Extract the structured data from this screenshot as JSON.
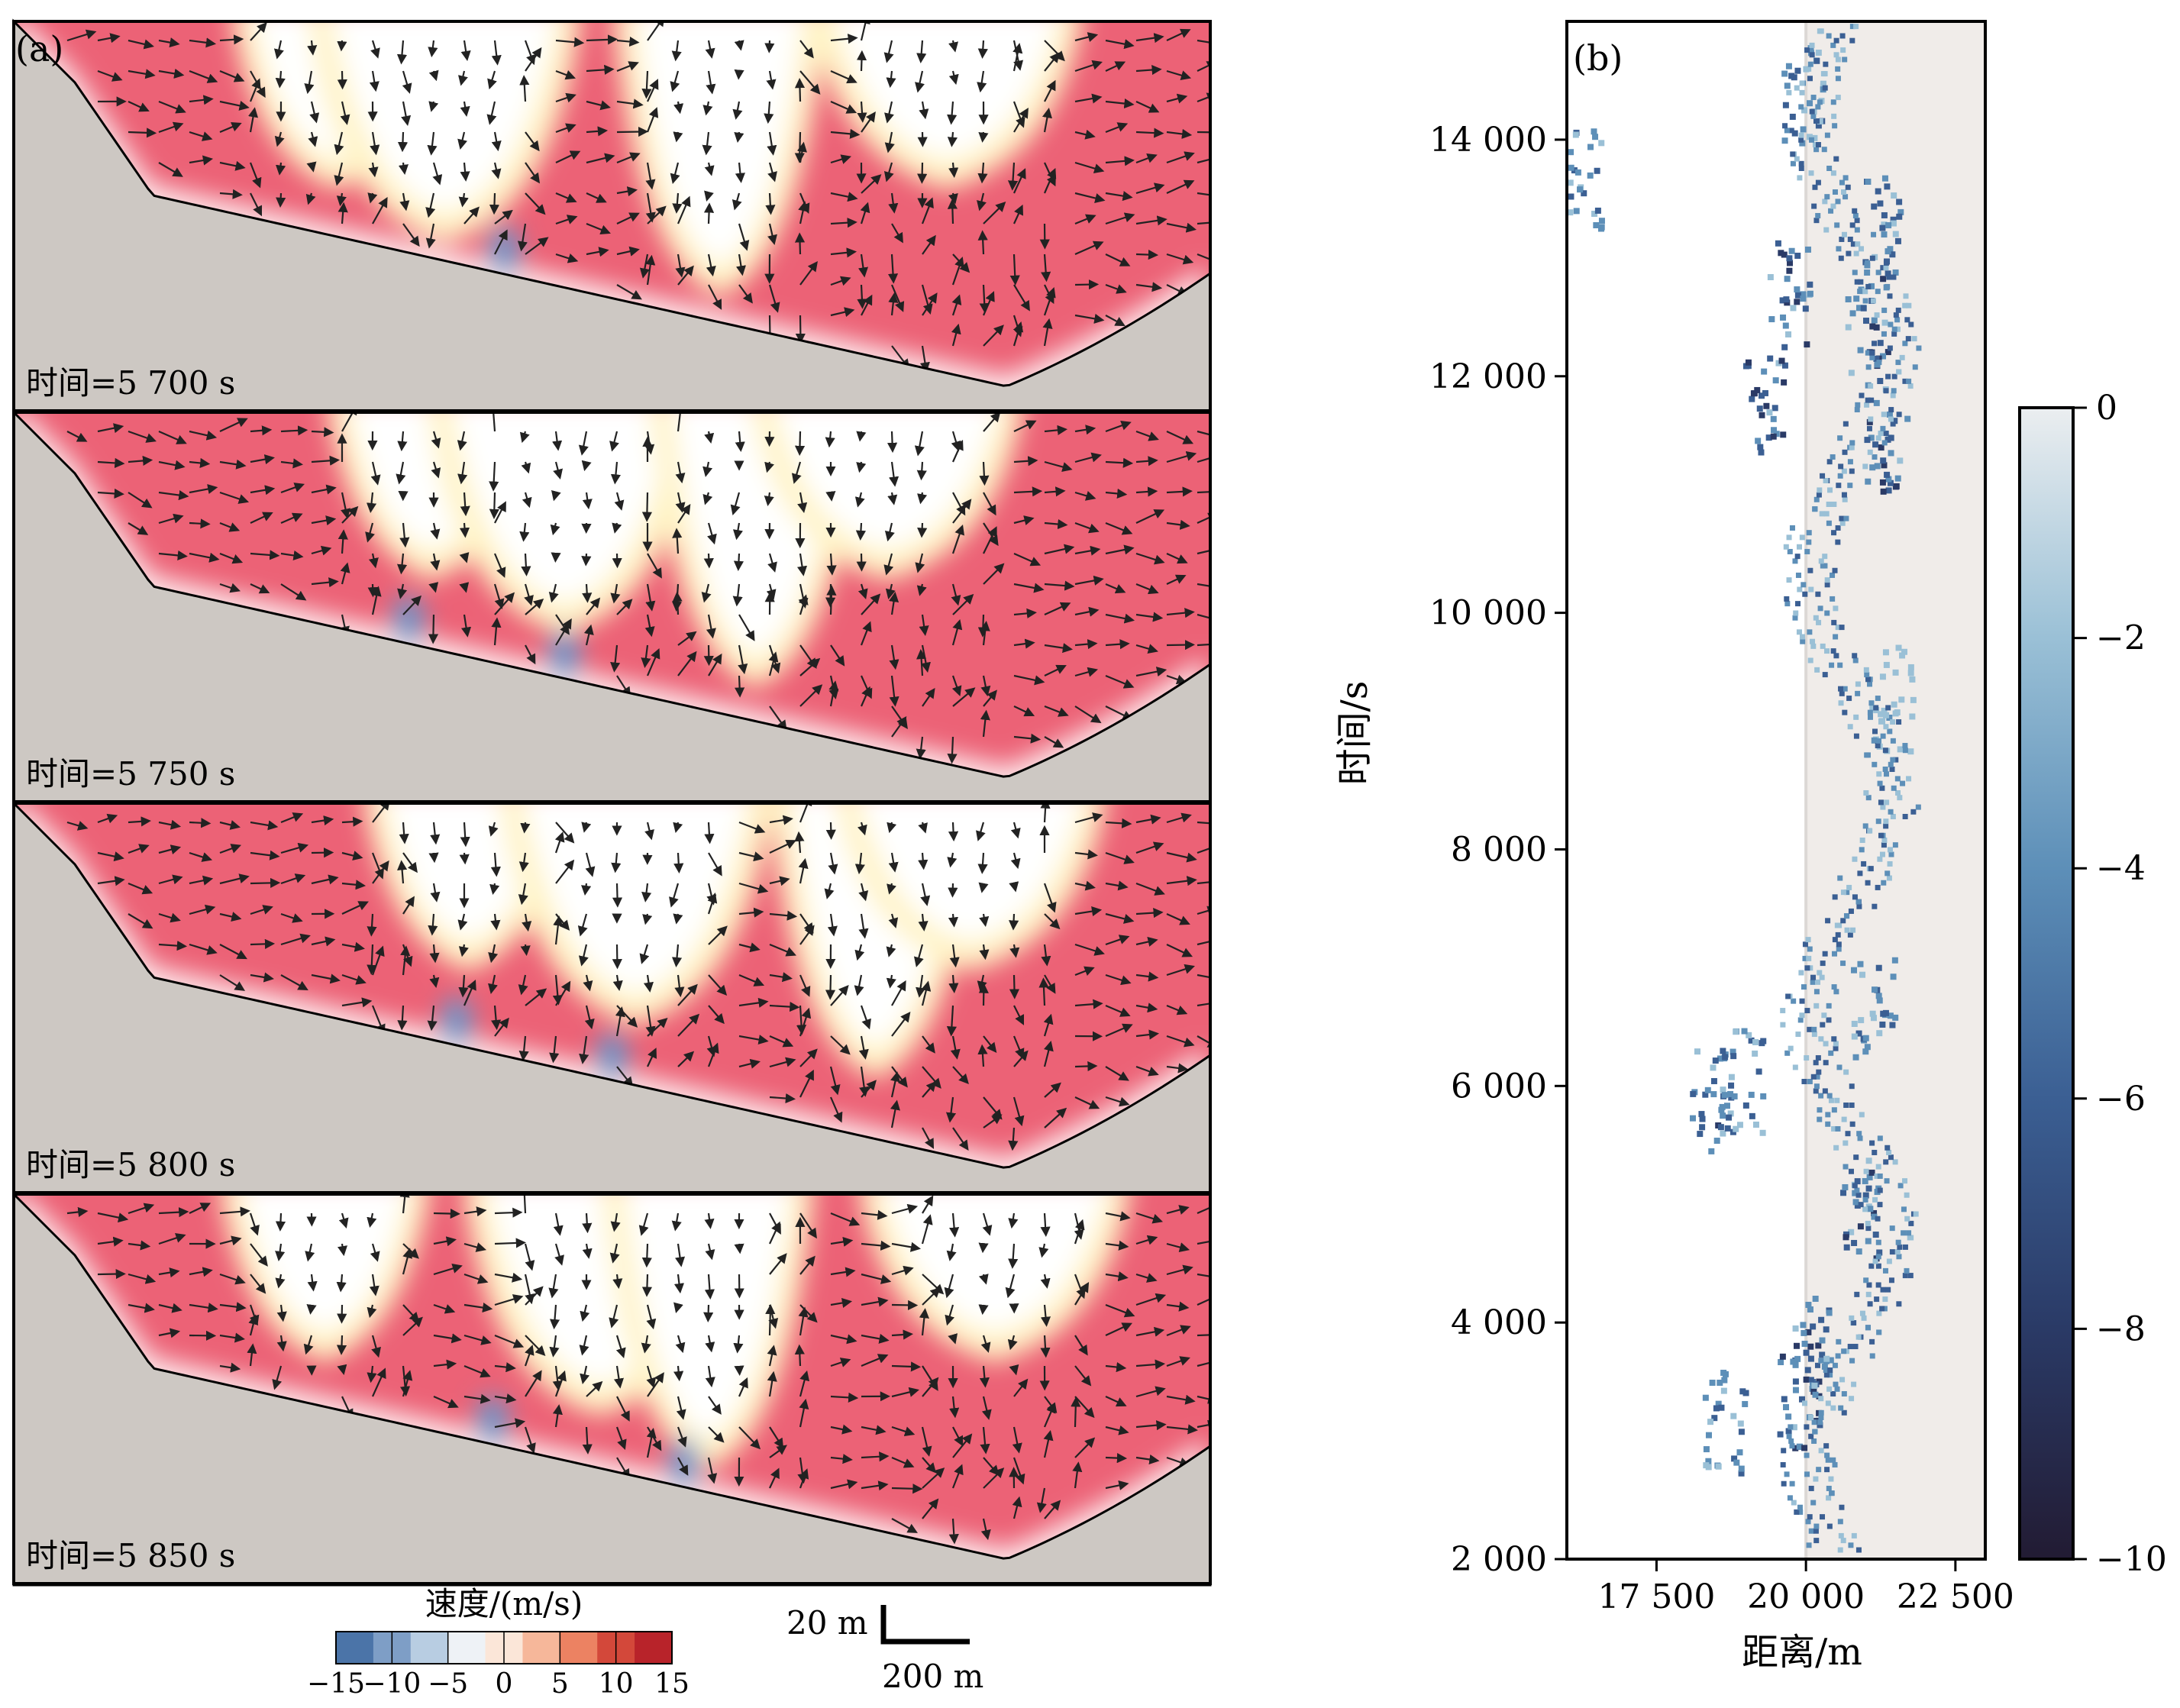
{
  "chart_data": [
    {
      "type": "heatmap",
      "panel": "(a)",
      "panel_label": "(a)",
      "colorbar": {
        "title": "速度/(m/s)",
        "range": [
          -15,
          15
        ],
        "ticks": [
          "−15",
          "−10",
          "−5",
          "0",
          "5",
          "10",
          "15"
        ],
        "colors": [
          "#4b74a8",
          "#7e9ec6",
          "#b8cde2",
          "#eef2f6",
          "#fbe6d8",
          "#f6b79a",
          "#ec8262",
          "#d3483a",
          "#b8232a"
        ]
      },
      "scalebar": {
        "vertical": "20 m",
        "horizontal": "200 m"
      },
      "colors": {
        "flow": "#ec6276",
        "terrain": "#cdc8c3",
        "calm": "#ffffff",
        "transition": "#fff3c4"
      },
      "panels": [
        {
          "label": "时间=5 700 s",
          "time_s": 5700,
          "calm_zones_x": [
            0.27,
            0.36,
            0.59,
            0.78
          ],
          "reverse_zones_x": [
            0.41
          ]
        },
        {
          "label": "时间=5 750 s",
          "time_s": 5750,
          "calm_zones_x": [
            0.35,
            0.46,
            0.62,
            0.73
          ],
          "reverse_zones_x": [
            0.33,
            0.46
          ]
        },
        {
          "label": "时间=5 800 s",
          "time_s": 5800,
          "calm_zones_x": [
            0.38,
            0.52,
            0.72,
            0.8
          ],
          "reverse_zones_x": [
            0.37,
            0.5
          ]
        },
        {
          "label": "时间=5 850 s",
          "time_s": 5850,
          "calm_zones_x": [
            0.26,
            0.49,
            0.58,
            0.82
          ],
          "reverse_zones_x": [
            0.4,
            0.56
          ]
        }
      ]
    },
    {
      "type": "heatmap",
      "panel": "(b)",
      "panel_label": "(b)",
      "xlabel": "距离/m",
      "ylabel": "时间/s",
      "xlim": [
        16000,
        23000
      ],
      "ylim": [
        2000,
        15000
      ],
      "xticks": [
        17500,
        20000,
        22500
      ],
      "xtick_labels": [
        "17 500",
        "20 000",
        "22 500"
      ],
      "yticks": [
        2000,
        4000,
        6000,
        8000,
        10000,
        12000,
        14000
      ],
      "ytick_labels": [
        "2 000",
        "4 000",
        "6 000",
        "8 000",
        "10 000",
        "12 000",
        "14 000"
      ],
      "shaded_region_x": [
        20000,
        23000
      ],
      "colorbar": {
        "range": [
          -10,
          0
        ],
        "ticks": [
          0,
          -2,
          -4,
          -6,
          -8,
          -10
        ],
        "tick_labels": [
          "0",
          "−2",
          "−4",
          "−6",
          "−8",
          "−10"
        ],
        "colors": [
          "#ebeef0",
          "#9ac0d6",
          "#5d8fb8",
          "#3b5f93",
          "#2a3a66",
          "#221b33"
        ]
      },
      "clusters": [
        {
          "x": 19850,
          "t": 3400,
          "value": -8
        },
        {
          "x": 20050,
          "t": 3800,
          "value": -7
        },
        {
          "x": 18600,
          "t": 3200,
          "value": -6
        },
        {
          "x": 18400,
          "t": 5900,
          "value": -7
        },
        {
          "x": 18900,
          "t": 6050,
          "value": -6
        },
        {
          "x": 19300,
          "t": 11800,
          "value": -8
        },
        {
          "x": 19700,
          "t": 12700,
          "value": -7
        },
        {
          "x": 19900,
          "t": 14400,
          "value": -6
        },
        {
          "x": 16200,
          "t": 13700,
          "value": -5
        },
        {
          "x": 20900,
          "t": 5000,
          "value": -7
        },
        {
          "x": 21100,
          "t": 6700,
          "value": -5
        },
        {
          "x": 21400,
          "t": 9300,
          "value": -3
        },
        {
          "x": 21000,
          "t": 12400,
          "value": -7
        },
        {
          "x": 21300,
          "t": 11500,
          "value": -8
        },
        {
          "x": 21200,
          "t": 13300,
          "value": -6
        }
      ]
    }
  ]
}
